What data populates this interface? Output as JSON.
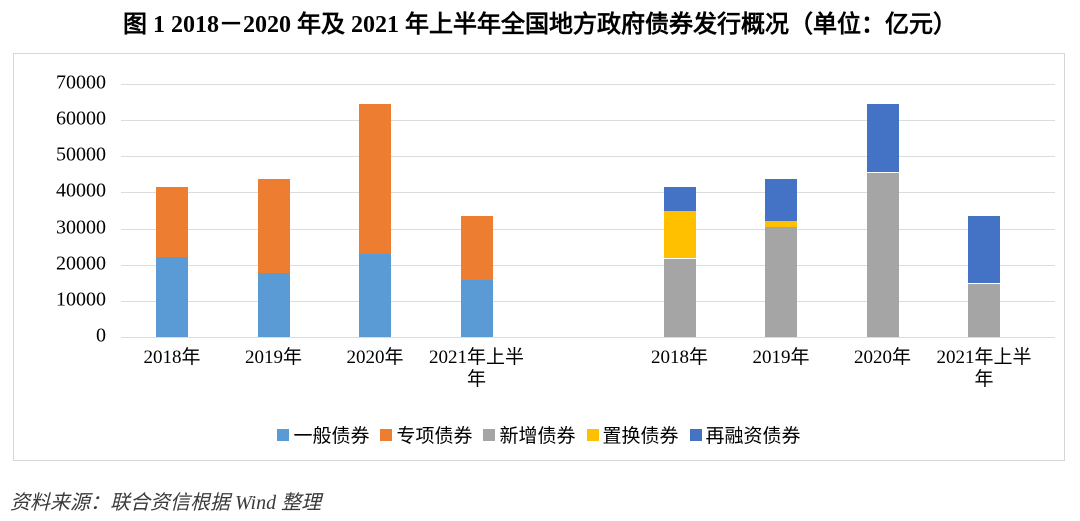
{
  "source_note": "资料来源：联合资信根据 Wind 整理",
  "chart_data": {
    "type": "bar",
    "stacked": true,
    "title": "图 1  2018－2020 年及 2021 年上半年全国地方政府债券发行概况（单位：亿元）",
    "unit": "亿元",
    "ylim": [
      0,
      70000
    ],
    "ytick_step": 10000,
    "ytick_labels": [
      "0",
      "10000",
      "20000",
      "30000",
      "40000",
      "50000",
      "60000",
      "70000"
    ],
    "grid": true,
    "legend_position": "bottom",
    "legend": [
      "一般债券",
      "专项债券",
      "新增债券",
      "置换债券",
      "再融资债券"
    ],
    "colors": {
      "general_bond": "#5B9BD5",
      "special_bond": "#ED7D31",
      "new_bond": "#A5A5A5",
      "swap_bond": "#FFC000",
      "refinancing_bond": "#4472C4"
    },
    "clusters": [
      {
        "categories": [
          "2018年",
          "2019年",
          "2020年",
          "2021年上半年"
        ],
        "series": [
          {
            "name": "一般债券",
            "color": "#5B9BD5",
            "values": [
              22200,
              17750,
              23000,
              15900
            ]
          },
          {
            "name": "专项债券",
            "color": "#ED7D31",
            "values": [
              19450,
              25850,
              41400,
              17500
            ]
          }
        ]
      },
      {
        "categories": [
          "2018年",
          "2019年",
          "2020年",
          "2021年上半年"
        ],
        "series": [
          {
            "name": "新增债券",
            "color": "#A5A5A5",
            "values": [
              21700,
              30500,
              45500,
              14800
            ]
          },
          {
            "name": "置换债券",
            "color": "#FFC000",
            "values": [
              13100,
              1600,
              0,
              0
            ]
          },
          {
            "name": "再融资债券",
            "color": "#4472C4",
            "values": [
              6850,
              11500,
              18900,
              18600
            ]
          }
        ]
      }
    ]
  }
}
